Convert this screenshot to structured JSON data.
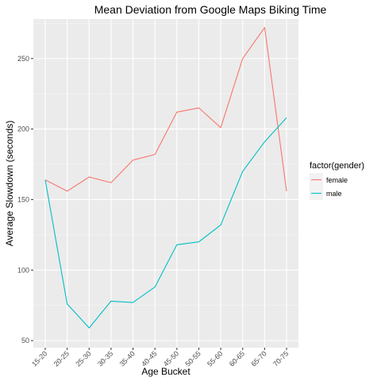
{
  "chart_data": {
    "type": "line",
    "title": "Mean Deviation from Google Maps Biking Time",
    "xlabel": "Age Bucket",
    "ylabel": "Average Slowdown (seconds)",
    "categories": [
      "15-20",
      "20-25",
      "25-30",
      "30-35",
      "35-40",
      "40-45",
      "45-50",
      "50-55",
      "55-60",
      "60-65",
      "65-70",
      "70-75"
    ],
    "ylim": [
      45,
      278
    ],
    "yticks": [
      50,
      100,
      150,
      200,
      250
    ],
    "grid": true,
    "legend": {
      "title": "factor(gender)",
      "placement": "right"
    },
    "series": [
      {
        "name": "female",
        "color": "#F8766D",
        "values": [
          164,
          156,
          166,
          162,
          178,
          182,
          212,
          215,
          201,
          250,
          272,
          156
        ]
      },
      {
        "name": "male",
        "color": "#00BFC4",
        "values": [
          164,
          76,
          59,
          78,
          77,
          88,
          118,
          120,
          132,
          170,
          191,
          208
        ]
      }
    ]
  }
}
